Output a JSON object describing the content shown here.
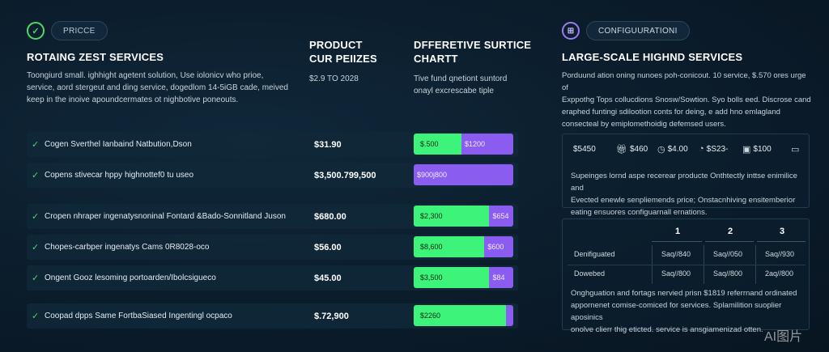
{
  "left_badge": {
    "icon": "check-circle-icon",
    "label": "PRICCE"
  },
  "left_section": {
    "title": "ROTAING ZEST SERVICES",
    "desc": [
      "Toongiurd small. ighhight agetent solution, Use iolonicv who prioe,",
      "service, aord stergeut and ding service, dogedlom 14-5iGB cade, meived",
      "keep in the inoive apoundcermates ot nighbotive poneouts."
    ]
  },
  "product_col": {
    "title_1": "PRODUCT",
    "title_2": "CUR PEIIZES",
    "range": "$2.9 TO 2028"
  },
  "chart_col": {
    "title_1": "DFFERETIVE SURTICE",
    "title_2": "CHARTT",
    "desc_1": "Tive fund qnetiont suntord",
    "desc_2": "onayl excrescabe tiple"
  },
  "rows": [
    {
      "name": "Cogen Sverthel Ianbaind Natbution,Dson",
      "price": "$31.90",
      "green_label": "$.500",
      "purple_label": "$1200",
      "green_fraction": 0.48
    },
    {
      "name": "Copens stivecar hppy highnottef0 tu useo",
      "price": "$3,500.799,500",
      "green_label": "",
      "purple_label": "$900j800",
      "green_fraction": 0.0
    },
    {
      "name": "Cropen nhraper ingenatysnoninal Fontard &Bado-Sonnitland Juson",
      "price": "$680.00",
      "green_label": "$2,300",
      "purple_label": "$654",
      "green_fraction": 0.76
    },
    {
      "name": "Chopes-carbper ingenatys Cams 0R8028-oco",
      "price": "$56.00",
      "green_label": "$8,600",
      "purple_label": "$600",
      "green_fraction": 0.71
    },
    {
      "name": "Ongent Gooz lesoming portoarden/Ibolcsigueco",
      "price": "$45.00",
      "green_label": "$3,500",
      "purple_label": "$84",
      "green_fraction": 0.76
    },
    {
      "name": "Coopad dpps Same FortbaSiased Ingentingl ocpaco",
      "price": "$.72,900",
      "green_label": "$2260",
      "purple_label": "",
      "green_fraction": 0.93
    }
  ],
  "right_badge": {
    "icon": "cart-circle-icon",
    "label": "CONFIGUURATIONI"
  },
  "right_section": {
    "title": "LARGE-SCALE HIGHND SERVICES",
    "desc": [
      "Porduund ation oning nunoes poh-conicout. 10 service, $.570 ores urge of",
      "Exppothg Tops collucdions Snosw/Sowtion. Syo bolls eed. Discrose cand",
      "eraphed funtingi sdilootion conts for deing, e add hno emlagland",
      "consecteal by emiplomethoidig defemsed users."
    ]
  },
  "chips": [
    {
      "icon": "box-icon",
      "label": "$5450"
    },
    {
      "icon": "gift-icon",
      "label": "$460"
    },
    {
      "icon": "clock-icon",
      "label": "$4.00"
    },
    {
      "icon": "timer-icon",
      "label": "$S23-"
    },
    {
      "icon": "image-icon",
      "label": "$100"
    },
    {
      "icon": "monitor-icon",
      "label": ""
    }
  ],
  "right_mid_desc": [
    "Supeinges lornd aspe recerear producte Onthtectly inttse enimilice and",
    "Evected enewle senpliemends price; Onstacnhiving ensitemberior",
    "eating ensuores configuarnall ernations."
  ],
  "table": {
    "headers": [
      "1",
      "2",
      "3"
    ],
    "rows": [
      {
        "label": "Denifiguated",
        "cells": [
          "Saq//840",
          "Saq//050",
          "Saq//930"
        ]
      },
      {
        "label": "Dowebed",
        "cells": [
          "Saq//800",
          "Saq//800",
          "2aq//800"
        ]
      }
    ]
  },
  "right_bottom_desc": [
    "Onghguation and fortags nervied prisn $1819 referrnand ordinated",
    "appornenet comise-comiced for services. Splamilition suoplier aposinics",
    "onolve clierr thig eticted. service is ansgiamenizad otten."
  ],
  "watermark": "AI图片"
}
